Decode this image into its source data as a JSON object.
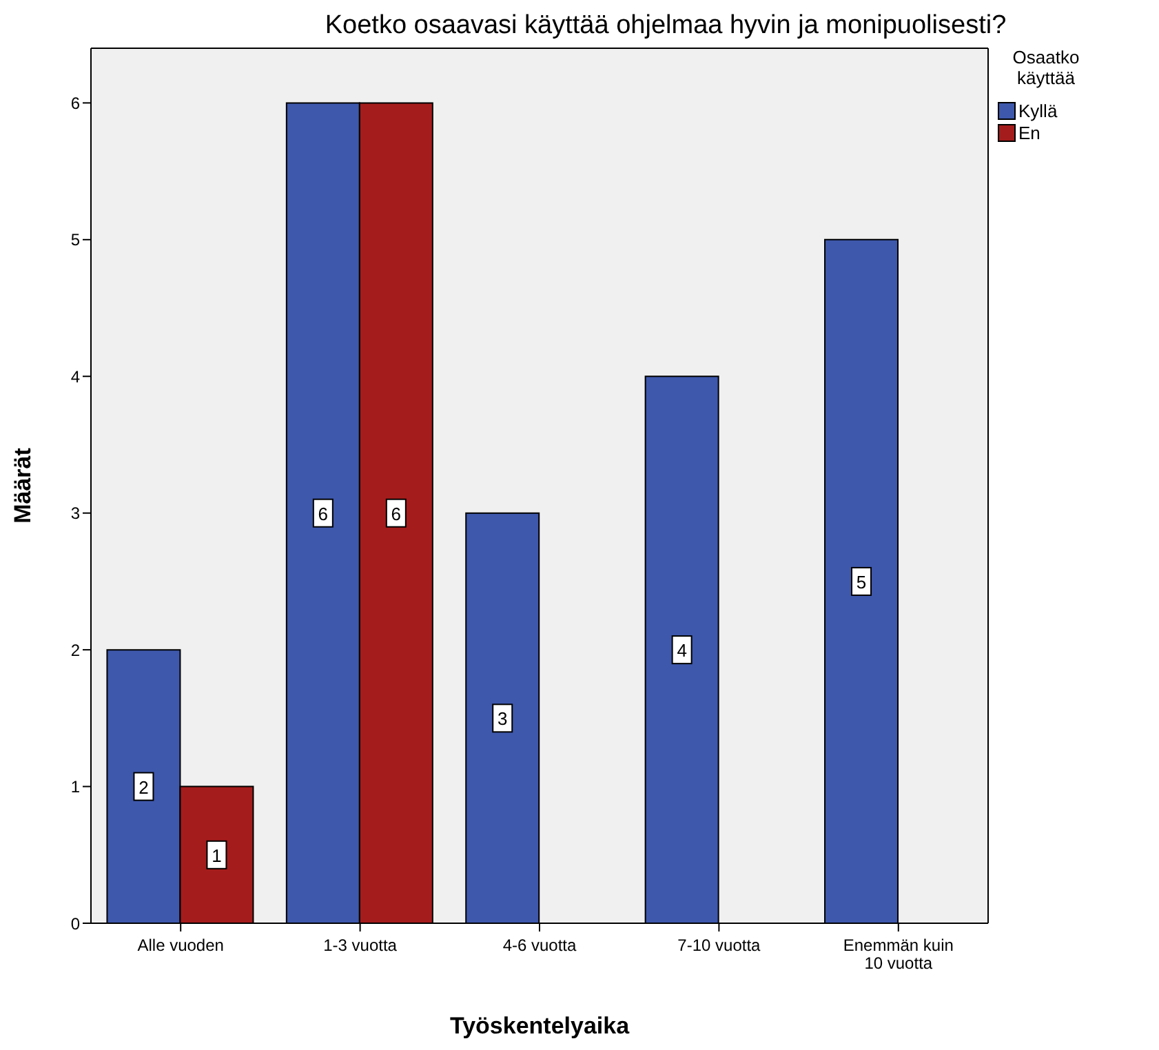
{
  "chart_data": {
    "type": "bar",
    "title": "Koetko osaavasi käyttää ohjelmaa hyvin ja monipuolisesti?",
    "xlabel": "Työskentelyaika",
    "ylabel": "Määrät",
    "legend_title": "Osaatko käyttää",
    "categories": [
      "Alle vuoden",
      "1-3 vuotta",
      "4-6 vuotta",
      "7-10 vuotta",
      "Enemmän kuin 10 vuotta"
    ],
    "series": [
      {
        "name": "Kyllä",
        "color": "#3e58ac",
        "values": [
          2,
          6,
          3,
          4,
          5
        ]
      },
      {
        "name": "En",
        "color": "#a51c1c",
        "values": [
          1,
          6,
          null,
          null,
          null
        ]
      }
    ],
    "ylim": [
      0,
      6.4
    ],
    "yticks": [
      0,
      1,
      2,
      3,
      4,
      5,
      6
    ],
    "grid": false,
    "legend": "top right",
    "data_labels": true
  }
}
